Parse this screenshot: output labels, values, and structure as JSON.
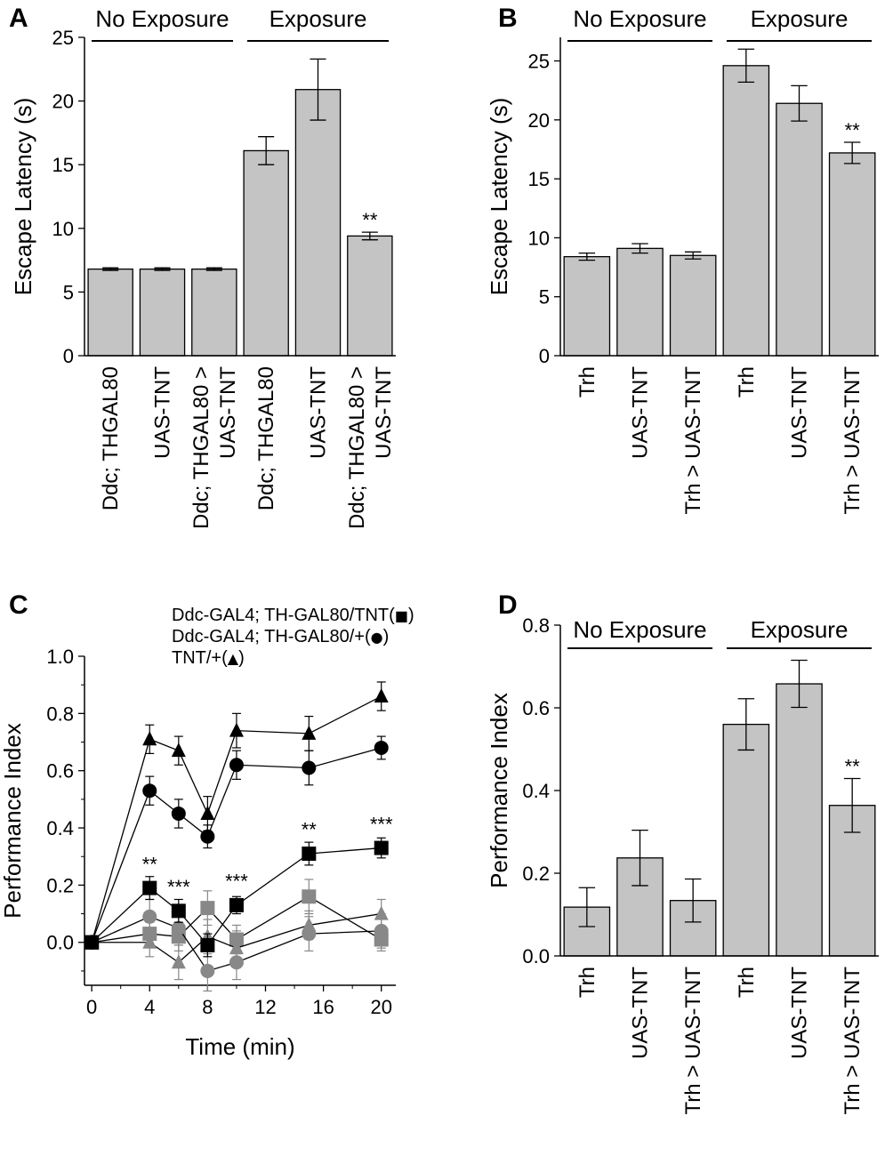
{
  "chart_data": [
    {
      "panel": "A",
      "type": "bar",
      "ylabel": "Escape Latency (s)",
      "ylim": [
        0,
        25
      ],
      "yticks": [
        "0",
        "5",
        "10",
        "15",
        "20",
        "25"
      ],
      "groups": [
        "No Exposure",
        "Exposure"
      ],
      "categories": [
        [
          "Ddc; THGAL80"
        ],
        [
          "UAS-TNT"
        ],
        [
          "Ddc; THGAL80 >",
          "UAS-TNT"
        ],
        [
          "Ddc; THGAL80"
        ],
        [
          "UAS-TNT"
        ],
        [
          "Ddc; THGAL80 >",
          "UAS-TNT"
        ]
      ],
      "values": [
        6.8,
        6.8,
        6.8,
        16.1,
        20.9,
        9.4
      ],
      "errors": [
        0.1,
        0.1,
        0.1,
        1.1,
        2.4,
        0.3
      ],
      "significance": [
        "",
        "",
        "",
        "",
        "",
        "**"
      ]
    },
    {
      "panel": "B",
      "type": "bar",
      "ylabel": "Escape Latency (s)",
      "ylim": [
        0,
        27
      ],
      "yticks": [
        "0",
        "5",
        "10",
        "15",
        "20",
        "25"
      ],
      "groups": [
        "No Exposure",
        "Exposure"
      ],
      "categories": [
        [
          "Trh"
        ],
        [
          "UAS-TNT"
        ],
        [
          "Trh > UAS-TNT"
        ],
        [
          "Trh"
        ],
        [
          "UAS-TNT"
        ],
        [
          "Trh > UAS-TNT"
        ]
      ],
      "values": [
        8.4,
        9.1,
        8.5,
        24.6,
        21.4,
        17.2
      ],
      "errors": [
        0.3,
        0.4,
        0.3,
        1.4,
        1.5,
        0.9
      ],
      "significance": [
        "",
        "",
        "",
        "",
        "",
        "**"
      ]
    },
    {
      "panel": "C",
      "type": "line",
      "xlabel": "Time (min)",
      "ylabel": "Performance Index",
      "xlim": [
        -0.5,
        21
      ],
      "ylim": [
        -0.15,
        1.0
      ],
      "xticks": [
        "0",
        "4",
        "8",
        "12",
        "16",
        "20"
      ],
      "yticks": [
        "0.0",
        "0.2",
        "0.4",
        "0.6",
        "0.8",
        "1.0"
      ],
      "legend": [
        {
          "label": "Ddc-GAL4; TH-GAL80/TNT(",
          "symbol": "■",
          "close": ")"
        },
        {
          "label": "Ddc-GAL4; TH-GAL80/+(",
          "symbol": "●",
          "close": ")"
        },
        {
          "label": "TNT/+(",
          "symbol": "▲",
          "close": ")"
        }
      ],
      "series": [
        {
          "name": "Ddc-GAL4; TH-GAL80/TNT",
          "marker": "square",
          "color": "#000000",
          "x": [
            0,
            4,
            6,
            8,
            10,
            15,
            20
          ],
          "y": [
            0.0,
            0.19,
            0.11,
            -0.01,
            0.13,
            0.31,
            0.33
          ],
          "err": [
            0,
            0.04,
            0.04,
            0.04,
            0.03,
            0.04,
            0.035
          ]
        },
        {
          "name": "Ddc-GAL4; TH-GAL80/+",
          "marker": "circle",
          "color": "#000000",
          "x": [
            0,
            4,
            6,
            8,
            10,
            15,
            20
          ],
          "y": [
            0.0,
            0.53,
            0.45,
            0.37,
            0.62,
            0.61,
            0.68
          ],
          "err": [
            0,
            0.05,
            0.05,
            0.04,
            0.05,
            0.06,
            0.04
          ]
        },
        {
          "name": "TNT/+",
          "marker": "triangle",
          "color": "#000000",
          "x": [
            0,
            4,
            6,
            8,
            10,
            15,
            20
          ],
          "y": [
            0.0,
            0.71,
            0.67,
            0.45,
            0.74,
            0.73,
            0.86
          ],
          "err": [
            0,
            0.05,
            0.05,
            0.06,
            0.06,
            0.06,
            0.05
          ]
        },
        {
          "name": "Ddc-GAL4; TH-GAL80/TNT (no exposure)",
          "marker": "square",
          "color": "#888888",
          "x": [
            0,
            4,
            6,
            8,
            10,
            15,
            20
          ],
          "y": [
            0.0,
            0.03,
            0.02,
            0.12,
            0.01,
            0.16,
            0.01
          ],
          "err": [
            0,
            0.04,
            0.05,
            0.06,
            0.05,
            0.06,
            0.04
          ]
        },
        {
          "name": "Ddc-GAL4; TH-GAL80/+ (no exposure)",
          "marker": "circle",
          "color": "#888888",
          "x": [
            0,
            4,
            6,
            8,
            10,
            15,
            20
          ],
          "y": [
            0.0,
            0.09,
            0.05,
            -0.1,
            -0.07,
            0.03,
            0.04
          ],
          "err": [
            0,
            0.06,
            0.06,
            0.07,
            0.06,
            0.06,
            0.06
          ]
        },
        {
          "name": "TNT/+ (no exposure)",
          "marker": "triangle",
          "color": "#888888",
          "x": [
            0,
            4,
            6,
            8,
            10,
            15,
            20
          ],
          "y": [
            0.0,
            0.0,
            -0.07,
            0.02,
            -0.02,
            0.06,
            0.1
          ],
          "err": [
            0,
            0.05,
            0.06,
            0.06,
            0.06,
            0.05,
            0.05
          ]
        }
      ],
      "annotations": [
        {
          "x": 4,
          "y": 0.25,
          "text": "**"
        },
        {
          "x": 6,
          "y": 0.17,
          "text": "***"
        },
        {
          "x": 10,
          "y": 0.19,
          "text": "***"
        },
        {
          "x": 15,
          "y": 0.37,
          "text": "**"
        },
        {
          "x": 20,
          "y": 0.39,
          "text": "***"
        }
      ]
    },
    {
      "panel": "D",
      "type": "bar",
      "ylabel": "Performance Index",
      "ylim": [
        0,
        0.8
      ],
      "yticks": [
        "0.0",
        "0.2",
        "0.4",
        "0.6",
        "0.8"
      ],
      "groups": [
        "No Exposure",
        "Exposure"
      ],
      "categories": [
        [
          "Trh"
        ],
        [
          "UAS-TNT"
        ],
        [
          "Trh > UAS-TNT"
        ],
        [
          "Trh"
        ],
        [
          "UAS-TNT"
        ],
        [
          "Trh > UAS-TNT"
        ]
      ],
      "values": [
        0.118,
        0.237,
        0.134,
        0.56,
        0.658,
        0.364
      ],
      "errors": [
        0.047,
        0.067,
        0.052,
        0.062,
        0.057,
        0.065
      ],
      "significance": [
        "",
        "",
        "",
        "",
        "",
        "**"
      ]
    }
  ]
}
